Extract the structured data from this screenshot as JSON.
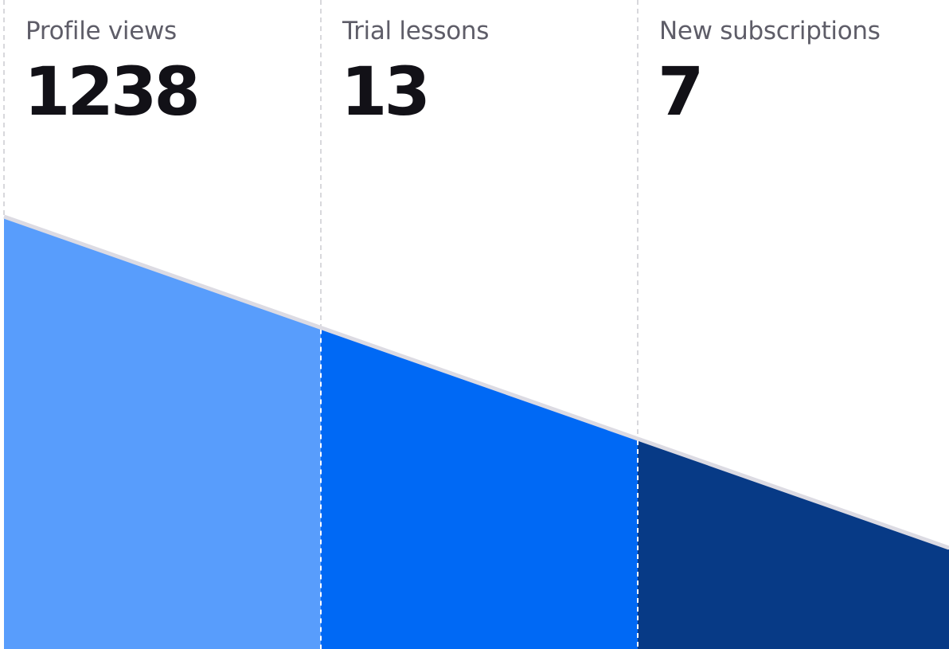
{
  "chart_data": {
    "type": "area",
    "categories": [
      "Profile views",
      "Trial lessons",
      "New subscriptions"
    ],
    "values": [
      1238,
      13,
      7
    ],
    "colors": [
      "#589DFC",
      "#0069F5",
      "#073A86"
    ],
    "edge_color": "#DCDBE3",
    "divider_color": "#D8D8DC"
  }
}
